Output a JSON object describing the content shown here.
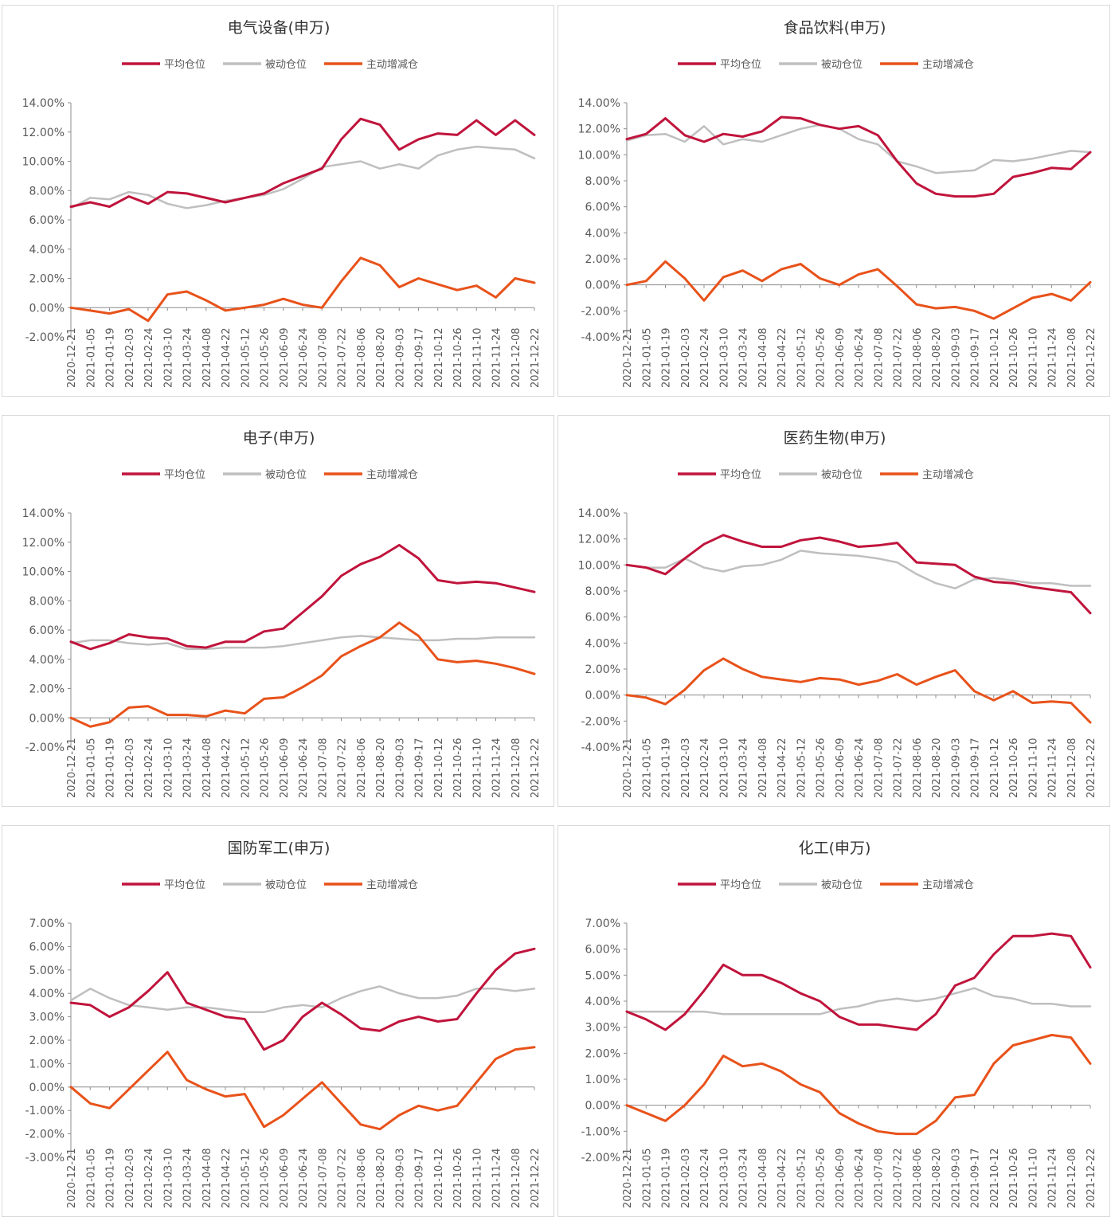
{
  "legend": {
    "avg_label": "平均仓位",
    "passive_label": "被动仓位",
    "active_label": "主动增减仓"
  },
  "colors": {
    "avg": "#c0143c",
    "passive": "#bfbfbf",
    "active": "#e8521a",
    "axis": "#8c8c8c",
    "text": "#595959"
  },
  "x_dates": [
    "2020-12-21",
    "2021-01-05",
    "2021-01-19",
    "2021-02-03",
    "2021-02-24",
    "2021-03-10",
    "2021-03-24",
    "2021-04-08",
    "2021-04-22",
    "2021-05-12",
    "2021-05-26",
    "2021-06-09",
    "2021-06-24",
    "2021-07-08",
    "2021-07-22",
    "2021-08-06",
    "2021-08-20",
    "2021-09-03",
    "2021-09-17",
    "2021-10-12",
    "2021-10-26",
    "2021-11-10",
    "2021-11-24",
    "2021-12-08",
    "2021-12-22"
  ],
  "chart_data": [
    {
      "type": "line",
      "title": "电气设备(申万)",
      "y_ticks": [
        "14.00%",
        "12.00%",
        "10.00%",
        "8.00%",
        "6.00%",
        "4.00%",
        "2.00%",
        "0.00%",
        "-2.00%"
      ],
      "ylim": [
        -2,
        14
      ],
      "series": [
        {
          "name": "平均仓位",
          "key": "avg",
          "values": [
            6.9,
            7.2,
            6.9,
            7.6,
            7.1,
            7.9,
            7.8,
            7.5,
            7.2,
            7.5,
            7.8,
            8.5,
            9.0,
            9.5,
            11.5,
            12.9,
            12.5,
            10.8,
            11.5,
            11.9,
            11.8,
            12.8,
            11.8,
            12.8,
            11.8
          ]
        },
        {
          "name": "被动仓位",
          "key": "passive",
          "values": [
            6.8,
            7.5,
            7.4,
            7.9,
            7.7,
            7.1,
            6.8,
            7.0,
            7.3,
            7.5,
            7.7,
            8.1,
            8.8,
            9.6,
            9.8,
            10.0,
            9.5,
            9.8,
            9.5,
            10.4,
            10.8,
            11.0,
            10.9,
            10.8,
            10.2
          ]
        },
        {
          "name": "主动增减仓",
          "key": "active",
          "values": [
            0.0,
            -0.2,
            -0.4,
            -0.1,
            -0.9,
            0.9,
            1.1,
            0.5,
            -0.2,
            0.0,
            0.2,
            0.6,
            0.2,
            0.0,
            1.8,
            3.4,
            2.9,
            1.4,
            2.0,
            1.6,
            1.2,
            1.5,
            0.7,
            2.0,
            1.7
          ]
        }
      ]
    },
    {
      "type": "line",
      "title": "食品饮料(申万)",
      "y_ticks": [
        "14.00%",
        "12.00%",
        "10.00%",
        "8.00%",
        "6.00%",
        "4.00%",
        "2.00%",
        "0.00%",
        "-2.00%",
        "-4.00%"
      ],
      "ylim": [
        -4,
        14
      ],
      "series": [
        {
          "name": "平均仓位",
          "key": "avg",
          "values": [
            11.2,
            11.6,
            12.8,
            11.5,
            11.0,
            11.6,
            11.4,
            11.8,
            12.9,
            12.8,
            12.3,
            12.0,
            12.2,
            11.5,
            9.5,
            7.8,
            7.0,
            6.8,
            6.8,
            7.0,
            8.3,
            8.6,
            9.0,
            8.9,
            10.2
          ]
        },
        {
          "name": "被动仓位",
          "key": "passive",
          "values": [
            11.1,
            11.5,
            11.6,
            11.0,
            12.2,
            10.8,
            11.2,
            11.0,
            11.5,
            12.0,
            12.3,
            12.0,
            11.2,
            10.8,
            9.5,
            9.1,
            8.6,
            8.7,
            8.8,
            9.6,
            9.5,
            9.7,
            10.0,
            10.3,
            10.2
          ]
        },
        {
          "name": "主动增减仓",
          "key": "active",
          "values": [
            0.0,
            0.3,
            1.8,
            0.5,
            -1.2,
            0.6,
            1.1,
            0.3,
            1.2,
            1.6,
            0.5,
            0.0,
            0.8,
            1.2,
            -0.1,
            -1.5,
            -1.8,
            -1.7,
            -2.0,
            -2.6,
            -1.8,
            -1.0,
            -0.7,
            -1.2,
            0.2
          ]
        }
      ]
    },
    {
      "type": "line",
      "title": "电子(申万)",
      "y_ticks": [
        "14.00%",
        "12.00%",
        "10.00%",
        "8.00%",
        "6.00%",
        "4.00%",
        "2.00%",
        "0.00%",
        "-2.00%"
      ],
      "ylim": [
        -2,
        14
      ],
      "series": [
        {
          "name": "平均仓位",
          "key": "avg",
          "values": [
            5.2,
            4.7,
            5.1,
            5.7,
            5.5,
            5.4,
            4.9,
            4.8,
            5.2,
            5.2,
            5.9,
            6.1,
            7.2,
            8.3,
            9.7,
            10.5,
            11.0,
            11.8,
            10.9,
            9.4,
            9.2,
            9.3,
            9.2,
            8.9,
            8.6
          ]
        },
        {
          "name": "被动仓位",
          "key": "passive",
          "values": [
            5.1,
            5.3,
            5.3,
            5.1,
            5.0,
            5.1,
            4.7,
            4.7,
            4.8,
            4.8,
            4.8,
            4.9,
            5.1,
            5.3,
            5.5,
            5.6,
            5.5,
            5.4,
            5.3,
            5.3,
            5.4,
            5.4,
            5.5,
            5.5,
            5.5
          ]
        },
        {
          "name": "主动增减仓",
          "key": "active",
          "values": [
            0.0,
            -0.6,
            -0.3,
            0.7,
            0.8,
            0.2,
            0.2,
            0.1,
            0.5,
            0.3,
            1.3,
            1.4,
            2.1,
            2.9,
            4.2,
            4.9,
            5.5,
            6.5,
            5.6,
            4.0,
            3.8,
            3.9,
            3.7,
            3.4,
            3.0
          ]
        }
      ]
    },
    {
      "type": "line",
      "title": "医药生物(申万)",
      "y_ticks": [
        "14.00%",
        "12.00%",
        "10.00%",
        "8.00%",
        "6.00%",
        "4.00%",
        "2.00%",
        "0.00%",
        "-2.00%",
        "-4.00%"
      ],
      "ylim": [
        -4,
        14
      ],
      "series": [
        {
          "name": "平均仓位",
          "key": "avg",
          "values": [
            10.0,
            9.8,
            9.3,
            10.5,
            11.6,
            12.3,
            11.8,
            11.4,
            11.4,
            11.9,
            12.1,
            11.8,
            11.4,
            11.5,
            11.7,
            10.2,
            10.1,
            10.0,
            9.1,
            8.7,
            8.6,
            8.3,
            8.1,
            7.9,
            6.3
          ]
        },
        {
          "name": "被动仓位",
          "key": "passive",
          "values": [
            10.0,
            9.8,
            9.8,
            10.5,
            9.8,
            9.5,
            9.9,
            10.0,
            10.4,
            11.1,
            10.9,
            10.8,
            10.7,
            10.5,
            10.2,
            9.3,
            8.6,
            8.2,
            8.9,
            9.0,
            8.8,
            8.6,
            8.6,
            8.4,
            8.4
          ]
        },
        {
          "name": "主动增减仓",
          "key": "active",
          "values": [
            0.0,
            -0.2,
            -0.7,
            0.4,
            1.9,
            2.8,
            2.0,
            1.4,
            1.2,
            1.0,
            1.3,
            1.2,
            0.8,
            1.1,
            1.6,
            0.8,
            1.4,
            1.9,
            0.3,
            -0.4,
            0.3,
            -0.6,
            -0.5,
            -0.6,
            -2.1
          ]
        }
      ]
    },
    {
      "type": "line",
      "title": "国防军工(申万)",
      "y_ticks": [
        "7.00%",
        "6.00%",
        "5.00%",
        "4.00%",
        "3.00%",
        "2.00%",
        "1.00%",
        "0.00%",
        "-1.00%",
        "-2.00%",
        "-3.00%"
      ],
      "ylim": [
        -3,
        7
      ],
      "series": [
        {
          "name": "平均仓位",
          "key": "avg",
          "values": [
            3.6,
            3.5,
            3.0,
            3.4,
            4.1,
            4.9,
            3.6,
            3.3,
            3.0,
            2.9,
            1.6,
            2.0,
            3.0,
            3.6,
            3.1,
            2.5,
            2.4,
            2.8,
            3.0,
            2.8,
            2.9,
            4.0,
            5.0,
            5.7,
            5.9
          ]
        },
        {
          "name": "被动仓位",
          "key": "passive",
          "values": [
            3.7,
            4.2,
            3.8,
            3.5,
            3.4,
            3.3,
            3.4,
            3.4,
            3.3,
            3.2,
            3.2,
            3.4,
            3.5,
            3.4,
            3.8,
            4.1,
            4.3,
            4.0,
            3.8,
            3.8,
            3.9,
            4.2,
            4.2,
            4.1,
            4.2
          ]
        },
        {
          "name": "主动增减仓",
          "key": "active",
          "values": [
            0.0,
            -0.7,
            -0.9,
            -0.1,
            0.7,
            1.5,
            0.3,
            -0.1,
            -0.4,
            -0.3,
            -1.7,
            -1.2,
            -0.5,
            0.2,
            -0.7,
            -1.6,
            -1.8,
            -1.2,
            -0.8,
            -1.0,
            -0.8,
            0.2,
            1.2,
            1.6,
            1.7
          ]
        }
      ]
    },
    {
      "type": "line",
      "title": "化工(申万)",
      "y_ticks": [
        "7.00%",
        "6.00%",
        "5.00%",
        "4.00%",
        "3.00%",
        "2.00%",
        "1.00%",
        "0.00%",
        "-1.00%",
        "-2.00%"
      ],
      "ylim": [
        -2,
        7
      ],
      "series": [
        {
          "name": "平均仓位",
          "key": "avg",
          "values": [
            3.6,
            3.3,
            2.9,
            3.5,
            4.4,
            5.4,
            5.0,
            5.0,
            4.7,
            4.3,
            4.0,
            3.4,
            3.1,
            3.1,
            3.0,
            2.9,
            3.5,
            4.6,
            4.9,
            5.8,
            6.5,
            6.5,
            6.6,
            6.5,
            5.3
          ]
        },
        {
          "name": "被动仓位",
          "key": "passive",
          "values": [
            3.6,
            3.6,
            3.6,
            3.6,
            3.6,
            3.5,
            3.5,
            3.5,
            3.5,
            3.5,
            3.5,
            3.7,
            3.8,
            4.0,
            4.1,
            4.0,
            4.1,
            4.3,
            4.5,
            4.2,
            4.1,
            3.9,
            3.9,
            3.8,
            3.8
          ]
        },
        {
          "name": "主动增减仓",
          "key": "active",
          "values": [
            0.0,
            -0.3,
            -0.6,
            0.0,
            0.8,
            1.9,
            1.5,
            1.6,
            1.3,
            0.8,
            0.5,
            -0.3,
            -0.7,
            -1.0,
            -1.1,
            -1.1,
            -0.6,
            0.3,
            0.4,
            1.6,
            2.3,
            2.5,
            2.7,
            2.6,
            1.6
          ]
        }
      ]
    }
  ]
}
